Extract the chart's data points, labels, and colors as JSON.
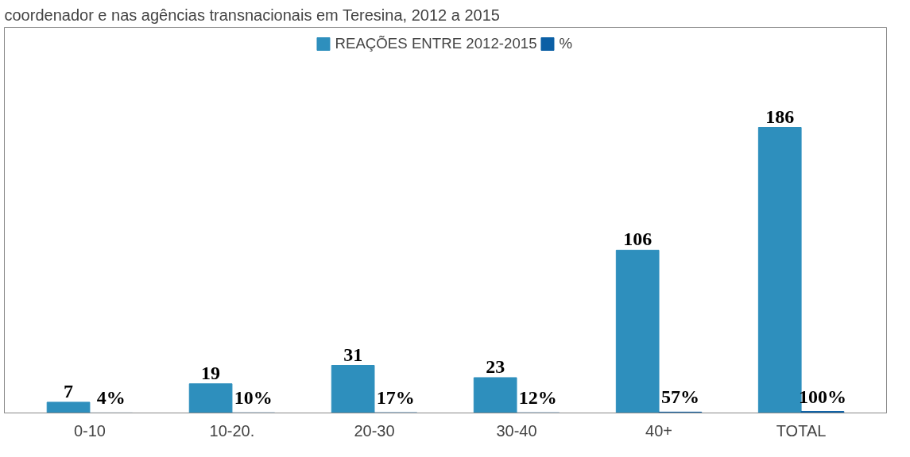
{
  "chart_data": {
    "type": "bar",
    "title": "coordenador e nas agências transnacionais em Teresina, 2012 a 2015",
    "categories": [
      "0-10",
      "10-20.",
      "20-30",
      "30-40",
      "40+",
      "TOTAL"
    ],
    "series": [
      {
        "name": "REAÇÕES ENTRE 2012-2015",
        "color": "#2e8fbd",
        "values": [
          7,
          19,
          31,
          23,
          106,
          186
        ],
        "value_labels": [
          "7",
          "19",
          "31",
          "23",
          "106",
          "186"
        ]
      },
      {
        "name": "%",
        "color": "#0b5fa5",
        "values": [
          0.04,
          0.1,
          0.17,
          0.12,
          0.57,
          1
        ],
        "value_labels": [
          "4%",
          "10%",
          "17%",
          "12%",
          "57%",
          "100%"
        ]
      }
    ],
    "legend": "top"
  }
}
